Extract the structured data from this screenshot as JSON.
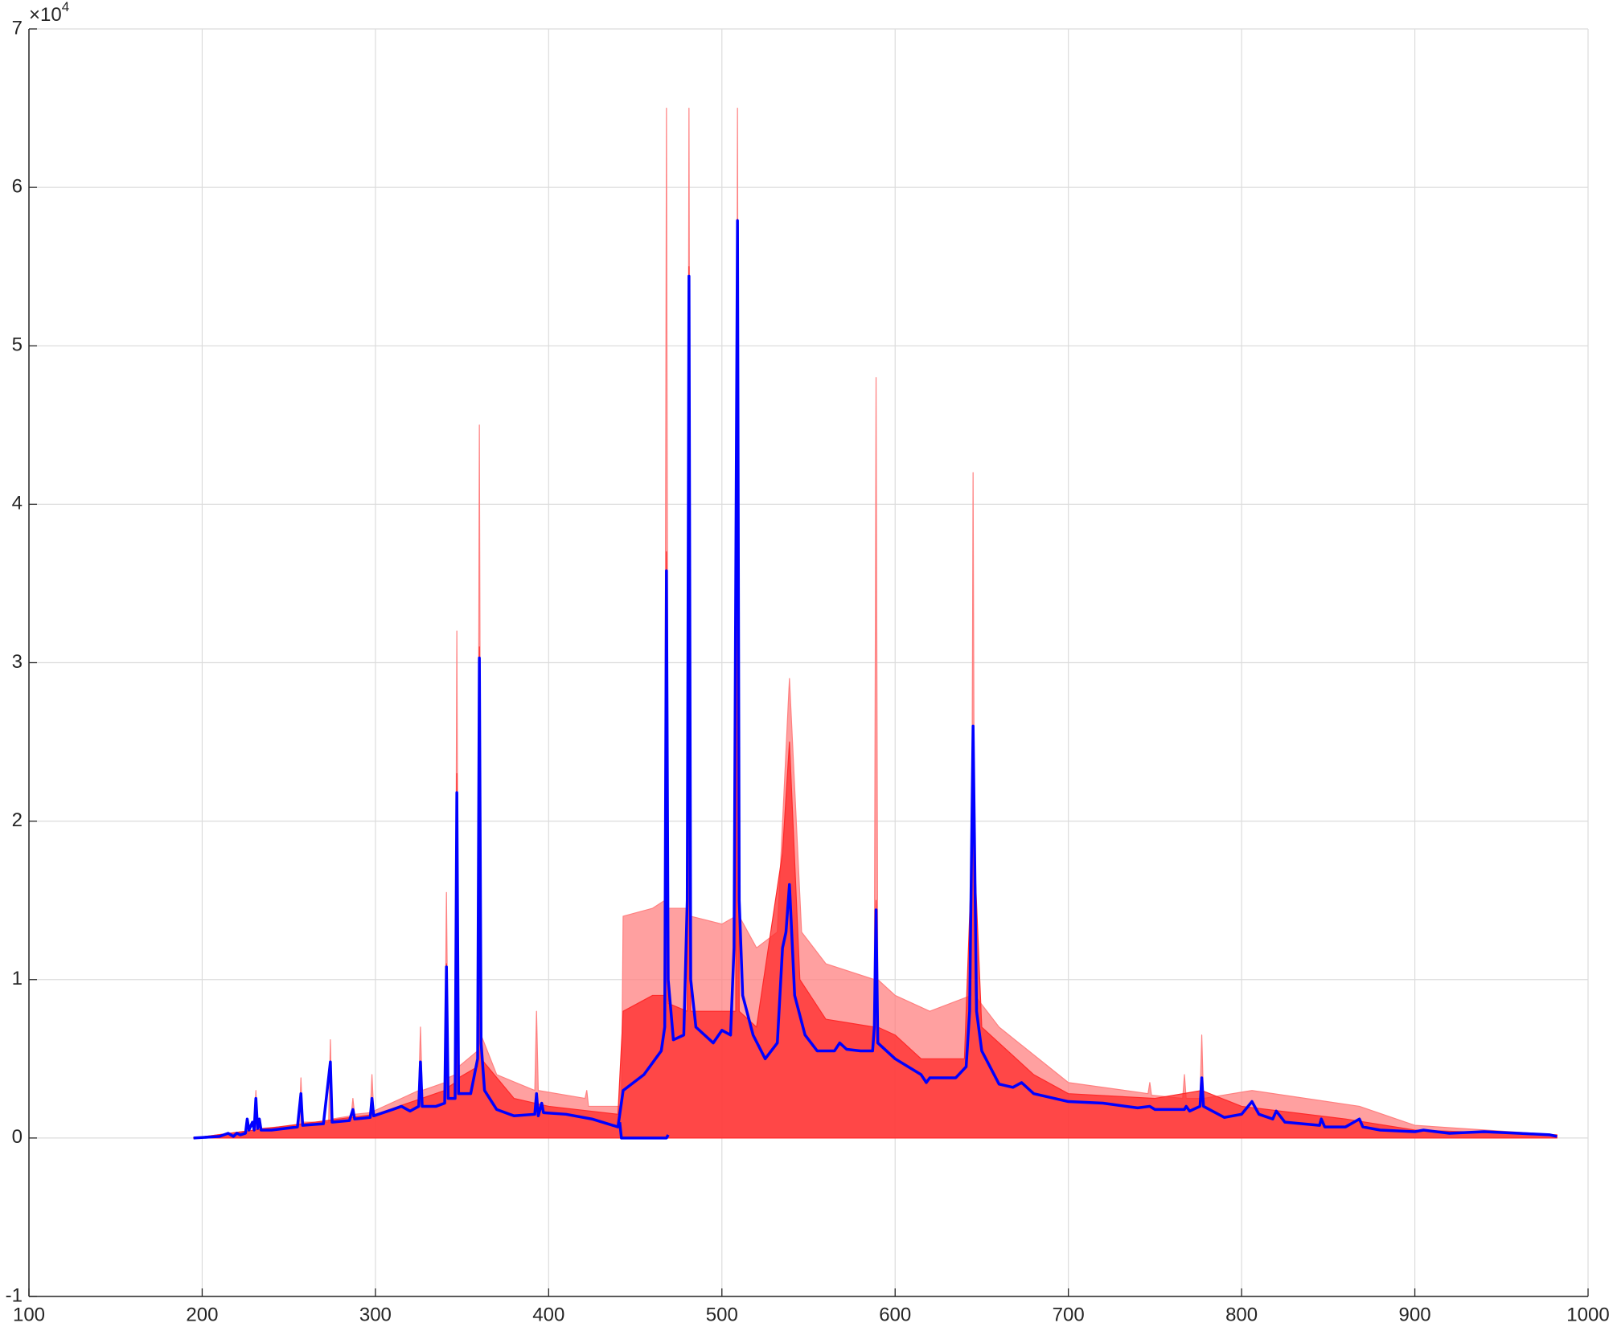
{
  "chart_data": {
    "type": "line",
    "y_exponent_label": {
      "base": "×10",
      "exponent": "4"
    },
    "xlim": [
      100,
      1000
    ],
    "xticks": [
      100,
      200,
      300,
      400,
      500,
      600,
      700,
      800,
      900,
      1000
    ],
    "ylim": [
      -1,
      7
    ],
    "yticks": [
      -1,
      0,
      1,
      2,
      3,
      4,
      5,
      6,
      7
    ],
    "grid": true,
    "series": [
      {
        "color": "#ff8080",
        "fill": true,
        "x": [
          195,
          230,
          231,
          232,
          256,
          257,
          258,
          273,
          274,
          275,
          286,
          287,
          288,
          297,
          298,
          299,
          325,
          326,
          327,
          340,
          341,
          342,
          346,
          347,
          348,
          359,
          360,
          361,
          370,
          392,
          393,
          394,
          421,
          422,
          423,
          442,
          443,
          460,
          467,
          468,
          469,
          480,
          481,
          482,
          500,
          508,
          509,
          510,
          520,
          532,
          539,
          546,
          560,
          588,
          589,
          590,
          600,
          620,
          644,
          645,
          646,
          660,
          700,
          746,
          747,
          748,
          766,
          767,
          768,
          776,
          777,
          778,
          806,
          868,
          900,
          982
        ],
        "values": [
          0,
          0.05,
          0.3,
          0.06,
          0.08,
          0.38,
          0.1,
          0.1,
          0.62,
          0.12,
          0.14,
          0.25,
          0.15,
          0.16,
          0.4,
          0.17,
          0.3,
          0.7,
          0.3,
          0.35,
          1.55,
          0.38,
          0.4,
          3.2,
          0.45,
          0.55,
          4.5,
          0.65,
          0.4,
          0.3,
          0.8,
          0.3,
          0.25,
          0.3,
          0.2,
          0.2,
          1.4,
          1.45,
          1.5,
          6.5,
          1.45,
          1.45,
          6.5,
          1.4,
          1.35,
          1.4,
          6.5,
          1.4,
          1.2,
          1.3,
          2.9,
          1.3,
          1.1,
          1.0,
          4.8,
          1.0,
          0.9,
          0.8,
          0.9,
          4.2,
          0.9,
          0.7,
          0.35,
          0.28,
          0.35,
          0.27,
          0.25,
          0.4,
          0.25,
          0.25,
          0.65,
          0.25,
          0.3,
          0.2,
          0.08,
          0.02
        ]
      },
      {
        "color": "#ff2a2a",
        "fill": true,
        "x": [
          195,
          230,
          300,
          340,
          341,
          342,
          346,
          347,
          348,
          359,
          360,
          361,
          380,
          400,
          440,
          443,
          460,
          467,
          468,
          469,
          480,
          481,
          482,
          500,
          508,
          509,
          510,
          520,
          535,
          539,
          545,
          560,
          588,
          589,
          590,
          600,
          615,
          640,
          645,
          650,
          680,
          700,
          750,
          777,
          800,
          860,
          900,
          982
        ],
        "values": [
          0,
          0.05,
          0.15,
          0.3,
          1.1,
          0.32,
          0.35,
          2.3,
          0.38,
          0.45,
          3.1,
          0.5,
          0.25,
          0.2,
          0.15,
          0.8,
          0.9,
          0.9,
          3.7,
          0.85,
          0.8,
          5.5,
          0.8,
          0.8,
          0.8,
          5.8,
          0.8,
          0.7,
          1.8,
          2.5,
          1.0,
          0.75,
          0.7,
          1.5,
          0.7,
          0.65,
          0.5,
          0.5,
          2.0,
          0.7,
          0.4,
          0.28,
          0.25,
          0.3,
          0.2,
          0.12,
          0.05,
          0.02
        ]
      },
      {
        "color": "#0000ff",
        "x": [
          195,
          210,
          215,
          218,
          220,
          222,
          225,
          226,
          227,
          229,
          230,
          231,
          232,
          233,
          234,
          240,
          255,
          257,
          258,
          270,
          274,
          275,
          285,
          287,
          288,
          297,
          298,
          299,
          310,
          315,
          320,
          325,
          326,
          327,
          335,
          340,
          341,
          342,
          346,
          347,
          348,
          355,
          359,
          360,
          361,
          363,
          370,
          380,
          392,
          393,
          394,
          396,
          397,
          410,
          425,
          440,
          443,
          455,
          465,
          467,
          468,
          469,
          472,
          478,
          480,
          481,
          482,
          485,
          495,
          500,
          505,
          507,
          509,
          510,
          512,
          518,
          525,
          532,
          535,
          537,
          539,
          542,
          548,
          555,
          565,
          568,
          572,
          580,
          587,
          588,
          589,
          590,
          600,
          615,
          618,
          620,
          635,
          641,
          643,
          645,
          647,
          650,
          660,
          668,
          673,
          680,
          700,
          720,
          740,
          747,
          750,
          767,
          768,
          770,
          776,
          777,
          778,
          790,
          800,
          806,
          810,
          818,
          820,
          825,
          845,
          846,
          848,
          860,
          868,
          870,
          880,
          900,
          905,
          920,
          940,
          960,
          978,
          982
        ],
        "values": [
          0,
          0.01,
          0.03,
          0.01,
          0.03,
          0.02,
          0.03,
          0.12,
          0.05,
          0.1,
          0.05,
          0.25,
          0.06,
          0.12,
          0.05,
          0.05,
          0.07,
          0.28,
          0.08,
          0.09,
          0.48,
          0.1,
          0.11,
          0.18,
          0.12,
          0.13,
          0.25,
          0.14,
          0.18,
          0.2,
          0.17,
          0.2,
          0.48,
          0.2,
          0.2,
          0.22,
          1.08,
          0.25,
          0.25,
          2.18,
          0.28,
          0.28,
          0.5,
          3.03,
          0.6,
          0.3,
          0.18,
          0.14,
          0.15,
          0.28,
          0.14,
          0.22,
          0.16,
          0.15,
          0.12,
          0.07,
          0.3,
          0.4,
          0.55,
          0.7,
          3.58,
          1.0,
          0.62,
          0.65,
          1.5,
          5.44,
          1.0,
          0.7,
          0.6,
          0.68,
          0.65,
          1.2,
          5.79,
          1.5,
          0.9,
          0.65,
          0.5,
          0.6,
          1.2,
          1.3,
          1.6,
          0.9,
          0.65,
          0.55,
          0.55,
          0.6,
          0.56,
          0.55,
          0.55,
          0.7,
          1.44,
          0.6,
          0.5,
          0.4,
          0.35,
          0.38,
          0.38,
          0.45,
          0.8,
          2.6,
          0.8,
          0.55,
          0.34,
          0.32,
          0.35,
          0.28,
          0.23,
          0.22,
          0.19,
          0.2,
          0.18,
          0.18,
          0.2,
          0.17,
          0.2,
          0.38,
          0.2,
          0.13,
          0.15,
          0.23,
          0.15,
          0.12,
          0.17,
          0.1,
          0.08,
          0.12,
          0.07,
          0.07,
          0.12,
          0.07,
          0.05,
          0.04,
          0.05,
          0.03,
          0.04,
          0.03,
          0.02,
          0.01
        ]
      },
      {
        "color": "#0000ff",
        "x": [
          441,
          442,
          468,
          469
        ],
        "values": [
          0.1,
          0,
          0,
          0.02
        ]
      }
    ]
  }
}
